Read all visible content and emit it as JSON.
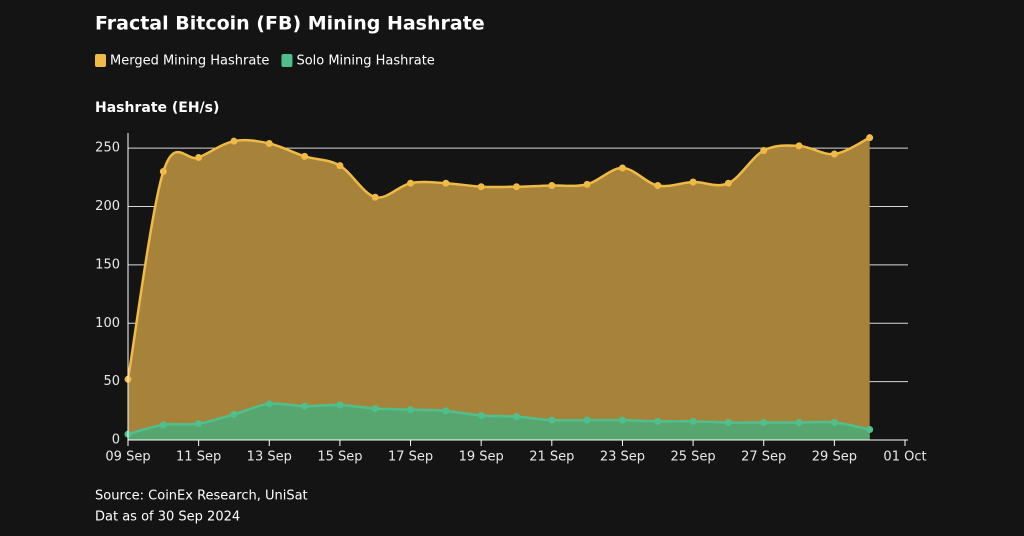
{
  "chart_data": {
    "type": "area",
    "title": "Fractal Bitcoin (FB) Mining Hashrate",
    "y_label": "Hashrate (EH/s)",
    "x": [
      "09 Sep",
      "10 Sep",
      "11 Sep",
      "12 Sep",
      "13 Sep",
      "14 Sep",
      "15 Sep",
      "16 Sep",
      "17 Sep",
      "18 Sep",
      "19 Sep",
      "20 Sep",
      "21 Sep",
      "22 Sep",
      "23 Sep",
      "24 Sep",
      "25 Sep",
      "26 Sep",
      "27 Sep",
      "28 Sep",
      "29 Sep",
      "30 Sep"
    ],
    "series": [
      {
        "name": "Merged Mining Hashrate",
        "color": "#efba45",
        "fill": "#a6823a",
        "values": [
          52,
          230,
          242,
          256,
          254,
          243,
          235,
          208,
          220,
          220,
          217,
          217,
          218,
          219,
          233,
          218,
          221,
          220,
          248,
          252,
          245,
          259
        ]
      },
      {
        "name": "Solo Mining Hashrate",
        "color": "#4fc08d",
        "fill": "#52a872",
        "values": [
          5,
          13,
          14,
          22,
          31,
          29,
          30,
          27,
          26,
          25,
          21,
          20,
          17,
          17,
          17,
          16,
          16,
          15,
          15,
          15,
          15,
          9
        ]
      }
    ],
    "xlim": [
      "09 Sep",
      "01 Oct"
    ],
    "xticks": [
      "09 Sep",
      "11 Sep",
      "13 Sep",
      "15 Sep",
      "17 Sep",
      "19 Sep",
      "21 Sep",
      "23 Sep",
      "25 Sep",
      "27 Sep",
      "29 Sep",
      "01 Oct"
    ],
    "ylim": [
      0,
      263
    ],
    "yticks": [
      0,
      50,
      100,
      150,
      200,
      250
    ],
    "grid": true,
    "source": "Source: CoinEx Research, UniSat",
    "note": "Dat as of 30 Sep 2024"
  }
}
